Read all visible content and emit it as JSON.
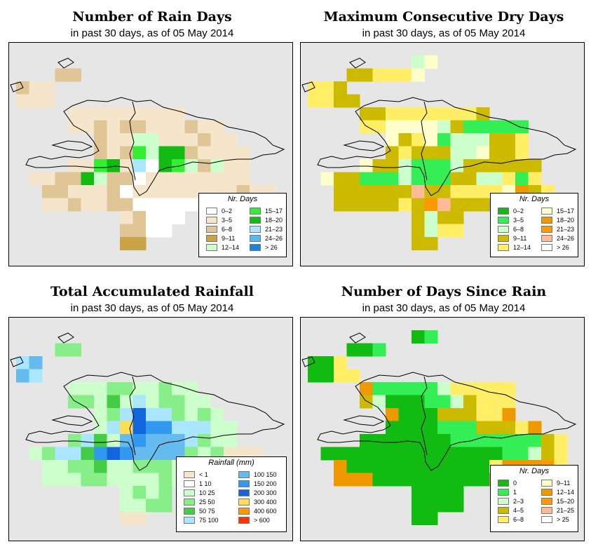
{
  "panels": [
    {
      "title": "Number of Rain Days",
      "subtitle": "in past 30 days, as of  05 May 2014",
      "legend": {
        "title": "Nr. Days",
        "items": [
          {
            "label": "0–2",
            "color": "#ffffff"
          },
          {
            "label": "3–5",
            "color": "#f5e6cb"
          },
          {
            "label": "6–8",
            "color": "#e0c697"
          },
          {
            "label": "9–11",
            "color": "#c9a346"
          },
          {
            "label": "12–14",
            "color": "#ccffcc"
          },
          {
            "label": "15–17",
            "color": "#33ee33"
          },
          {
            "label": "18–20",
            "color": "#11bb11"
          },
          {
            "label": "21–23",
            "color": "#aae6ff"
          },
          {
            "label": "24–26",
            "color": "#55bbee"
          },
          {
            "label": "> 26",
            "color": "#1188dd"
          }
        ]
      }
    },
    {
      "title": "Maximum Consecutive Dry Days",
      "subtitle": "in past 30 days, as of  05 May 2014",
      "legend": {
        "title": "Nr. Days",
        "items": [
          {
            "label": "0–2",
            "color": "#11bb11"
          },
          {
            "label": "3–5",
            "color": "#33ee55"
          },
          {
            "label": "6–8",
            "color": "#ccffcc"
          },
          {
            "label": "9–11",
            "color": "#ccbb00"
          },
          {
            "label": "12–14",
            "color": "#ffee66"
          },
          {
            "label": "15–17",
            "color": "#ffffcc"
          },
          {
            "label": "18–20",
            "color": "#ee9900"
          },
          {
            "label": "21–23",
            "color": "#ff9900"
          },
          {
            "label": "24–26",
            "color": "#ffbb99"
          },
          {
            "label": "> 26",
            "color": "#ffffff"
          }
        ]
      }
    },
    {
      "title": "Total Accumulated Rainfall",
      "subtitle": "in past 30 days, as of  05 May 2014",
      "legend": {
        "title": "Rainfall (mm)",
        "items": [
          {
            "label": "< 1",
            "color": "#f5e6cb"
          },
          {
            "label": "1   10",
            "color": "#ffffff"
          },
          {
            "label": "10   25",
            "color": "#ccffcc"
          },
          {
            "label": "25   50",
            "color": "#88ee88"
          },
          {
            "label": "50   75",
            "color": "#44cc44"
          },
          {
            "label": "75   100",
            "color": "#aae6ff"
          },
          {
            "label": "100   150",
            "color": "#66bbee"
          },
          {
            "label": "150   200",
            "color": "#3399ee"
          },
          {
            "label": "200   300",
            "color": "#1166dd"
          },
          {
            "label": "300   400",
            "color": "#ffdd55"
          },
          {
            "label": "400   600",
            "color": "#ff9900"
          },
          {
            "label": "> 600",
            "color": "#ff3300"
          }
        ]
      }
    },
    {
      "title": "Number of Days Since Rain",
      "subtitle": "in past 30 days, as of  05 May 2014",
      "legend": {
        "title": "Nr. Days",
        "items": [
          {
            "label": "0",
            "color": "#11bb11"
          },
          {
            "label": "1",
            "color": "#33ee55"
          },
          {
            "label": "2–3",
            "color": "#ccffcc"
          },
          {
            "label": "4–5",
            "color": "#ccbb00"
          },
          {
            "label": "6–8",
            "color": "#ffee66"
          },
          {
            "label": "9–11",
            "color": "#ffffcc"
          },
          {
            "label": "12–14",
            "color": "#ee9900"
          },
          {
            "label": "15–20",
            "color": "#ff9900"
          },
          {
            "label": "21–25",
            "color": "#ffbb99"
          },
          {
            "label": "> 25",
            "color": "#ffffff"
          }
        ]
      }
    }
  ],
  "grids": [
    [
      "....................",
      "...cc...............",
      "cbb.................",
      "bbb.................",
      "....bbbbbbbbb.......",
      "....bbcbccbbbcbb....",
      "......cbbeebbbcbb...",
      "......cbcfeggcbbbb..",
      "....bbfgbhagfecebb..",
      ".bbccgeccabbbbbbbb..",
      "..ccbbbcabbbbbbbbcbb",
      "..bbcbbccaaaaaaaabb.",
      "........bcaaa.......",
      "........ccaa........",
      "........dd.........."
    ],
    [
      "........cf..........",
      "...ddeeef...........",
      "eed.................",
      "eedd................",
      "....ddeeeeeeed......",
      "....eeffffcdbbbbb...",
      "......fdefbcccdde...",
      "......dedddccfdde...",
      "....fddcbbbcdddddd..",
      ".fddbbbcbbbddccebe..",
      "..ddddddiddeeeefgde.",
      "..dddddedhiddddddd..",
      "........dcdd....g...",
      "........dcee........",
      "........dd.........."
    ],
    [
      "....................",
      "...dd...............",
      "fg..................",
      "gf..................",
      "....cccddccdcc......",
      "....ddcecfcddcc.....",
      "......cdfiffdcdc....",
      "......cfjihhfffcc...",
      "....dfecghgggfdcc...",
      ".cdffehihggggdcdaaa.",
      "..ccddeccdddccdcaaaa",
      "..cccddccccdcaaaaa..",
      "........cdcd........",
      "........ccdd........",
      "........aa.........."
    ],
    [
      "........ab..........",
      "...aab..............",
      "aae.................",
      "aaee................",
      "....gbbbbbceeeee....",
      "....dcaaabbcdeee....",
      "......gaaadddeeg....",
      "......aaaabbbdddeg..",
      "....aaaaaaabbbbbbbde",
      ".aaaaaaaaaaaaaabbcde",
      "..gaaaaaaaaaaaeggghe",
      "..gggaaaaaaaaagggggi",
      "........aaaa........",
      "........aaaa........",
      "........aa.........."
    ]
  ]
}
